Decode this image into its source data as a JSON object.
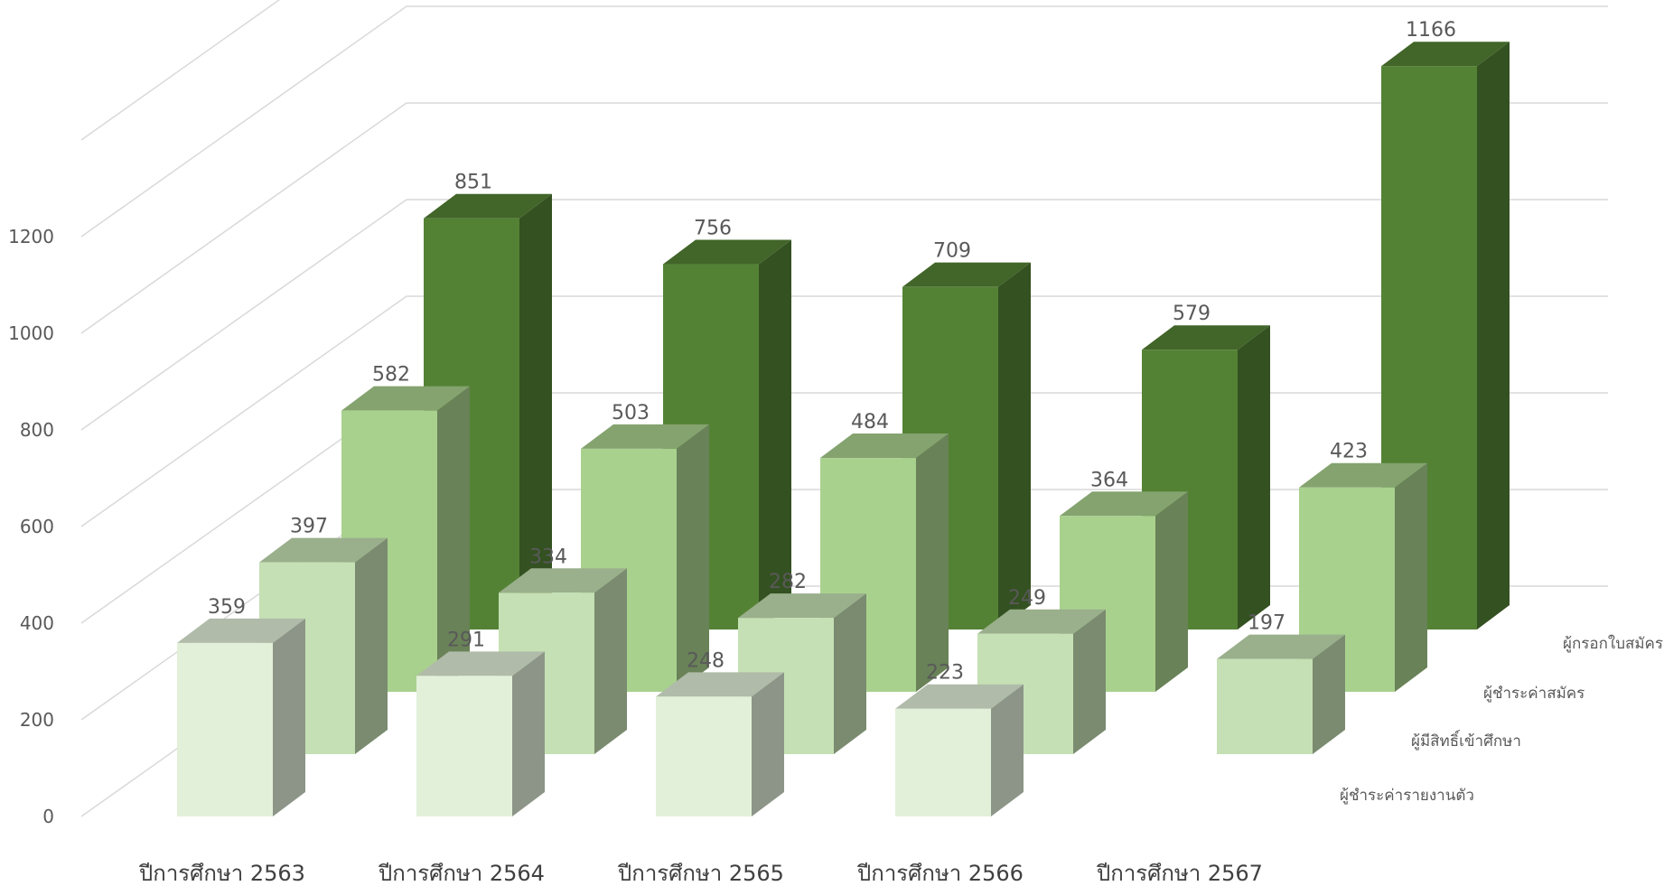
{
  "chart_data": {
    "type": "bar",
    "categories": [
      "ปีการศึกษา 2563",
      "ปีการศึกษา 2564",
      "ปีการศึกษา 2565",
      "ปีการศึกษา 2566",
      "ปีการศึกษา 2567"
    ],
    "series": [
      {
        "name": "ผู้กรอกใบสมัคร",
        "values": [
          851,
          756,
          709,
          579,
          1166
        ],
        "color": "#548235"
      },
      {
        "name": "ผู้ชำระค่าสมัคร",
        "values": [
          582,
          503,
          484,
          364,
          423
        ],
        "color": "#A9D18E"
      },
      {
        "name": "ผู้มีสิทธิ์เข้าศึกษา",
        "values": [
          397,
          334,
          282,
          249,
          197
        ],
        "color": "#C5E0B4"
      },
      {
        "name": "ผู้ชำระค่ารายงานตัว",
        "values": [
          359,
          291,
          248,
          223,
          null
        ],
        "color": "#E2F0D9"
      }
    ],
    "y_ticks": [
      0,
      200,
      400,
      600,
      800,
      1000,
      1200
    ],
    "ylim": [
      0,
      1200
    ],
    "title": "",
    "xlabel": "",
    "ylabel": "",
    "grid": true,
    "style": "3d-column",
    "legend": "series labels on right depth axis"
  }
}
